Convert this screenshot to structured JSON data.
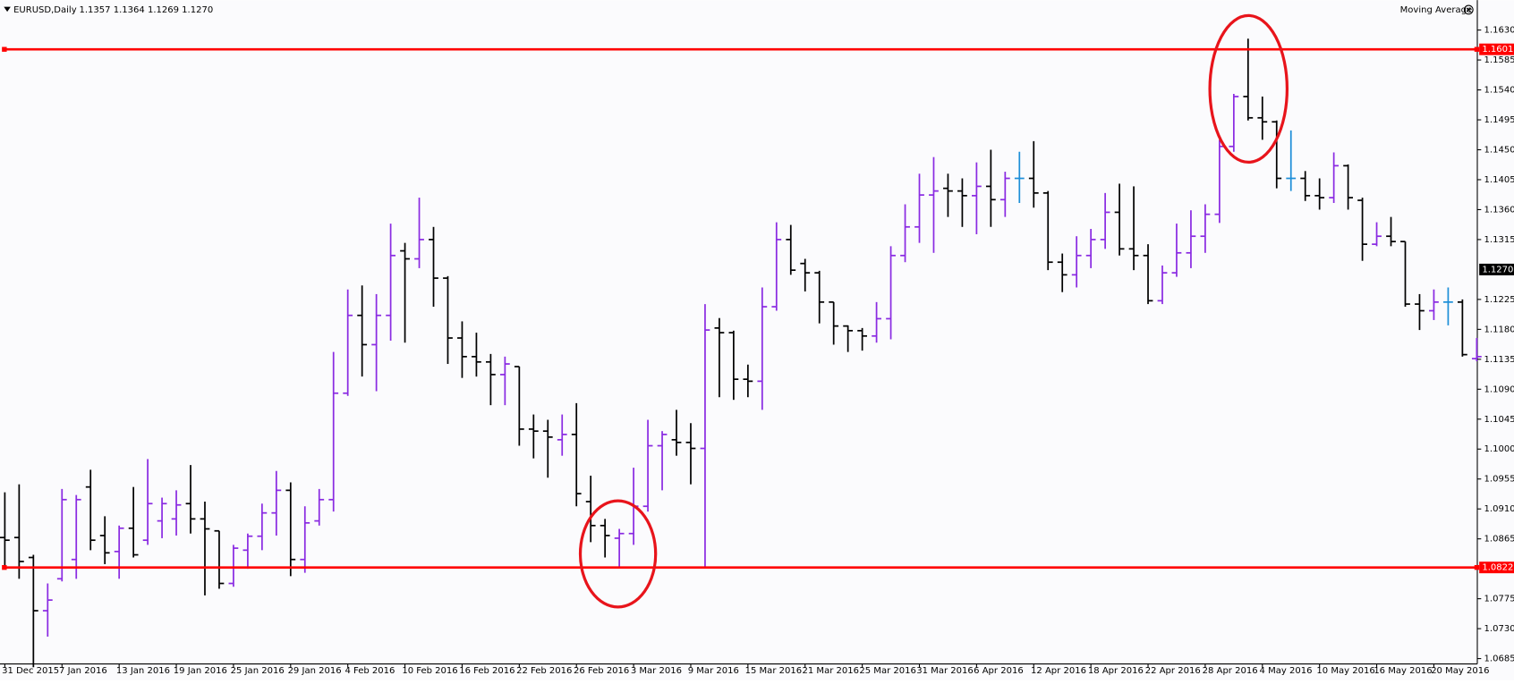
{
  "chart_data": {
    "type": "ohlc",
    "title": "EURUSD,Daily",
    "subtitle": "1.1357 1.1364 1.1269 1.1270",
    "indicator": "Moving Average",
    "categories": [
      "31 Dec 2015",
      null,
      null,
      null,
      "7 Jan 2016",
      null,
      null,
      null,
      "13 Jan 2016",
      null,
      null,
      null,
      "19 Jan 2016",
      null,
      null,
      null,
      "25 Jan 2016",
      null,
      null,
      null,
      "29 Jan 2016",
      null,
      null,
      null,
      "4 Feb 2016",
      null,
      null,
      null,
      "10 Feb 2016",
      null,
      null,
      null,
      "16 Feb 2016",
      null,
      null,
      null,
      "22 Feb 2016",
      null,
      null,
      null,
      "26 Feb 2016",
      null,
      null,
      null,
      "3 Mar 2016",
      null,
      null,
      null,
      "9 Mar 2016",
      null,
      null,
      null,
      "15 Mar 2016",
      null,
      null,
      null,
      "21 Mar 2016",
      null,
      null,
      null,
      "25 Mar 2016",
      null,
      null,
      null,
      "31 Mar 2016",
      null,
      null,
      null,
      "6 Apr 2016",
      null,
      null,
      null,
      "12 Apr 2016",
      null,
      null,
      null,
      "18 Apr 2016",
      null,
      null,
      null,
      "22 Apr 2016",
      null,
      null,
      null,
      "28 Apr 2016",
      null,
      null,
      null,
      "4 May 2016",
      null,
      null,
      null,
      "10 May 2016",
      null,
      null,
      null,
      "16 May 2016",
      null,
      null,
      null,
      "20 May 2016",
      null,
      null,
      null
    ],
    "open": [
      1.0867,
      1.0867,
      1.0837,
      1.0757,
      1.0805,
      1.0834,
      1.0943,
      1.087,
      1.0846,
      1.0881,
      1.0863,
      1.0892,
      1.0895,
      1.0918,
      1.0895,
      1.0877,
      1.0798,
      1.0848,
      1.0869,
      1.0904,
      1.0938,
      1.0834,
      1.0892,
      1.0924,
      1.1084,
      1.1201,
      1.1157,
      1.1201,
      1.1298,
      1.1286,
      1.1315,
      1.1257,
      1.1167,
      1.1139,
      1.1131,
      1.1112,
      1.1124,
      1.103,
      1.1027,
      1.1014,
      1.1022,
      1.0921,
      1.0885,
      1.0866,
      1.0873,
      1.0914,
      1.1005,
      1.1014,
      1.101,
      1.1001,
      1.1182,
      1.1175,
      1.1105,
      1.1102,
      1.1214,
      1.1315,
      1.1279,
      1.1265,
      1.1221,
      1.1185,
      1.1178,
      1.117,
      1.1196,
      1.1291,
      1.1334,
      1.1382,
      1.1392,
      1.1388,
      1.1381,
      1.1395,
      1.1375,
      1.1407,
      1.1407,
      1.1385,
      1.1281,
      1.1262,
      1.1291,
      1.1315,
      1.1356,
      1.1301,
      1.1291,
      1.1223,
      1.1265,
      1.1295,
      1.132,
      1.1353,
      1.1455,
      1.153,
      1.1498,
      1.1492,
      1.1407,
      1.1407,
      1.1381,
      1.1378,
      1.1426,
      1.1374,
      1.1308,
      1.132,
      1.1312,
      1.1218,
      1.1208,
      1.1221,
      1.1221,
      1.1136
    ],
    "high": [
      1.0935,
      1.0947,
      1.0841,
      1.0798,
      1.094,
      1.0931,
      1.0969,
      1.0899,
      1.0885,
      1.0943,
      1.0985,
      1.0927,
      1.0938,
      1.0976,
      1.0921,
      1.0877,
      1.0856,
      1.0873,
      1.0918,
      1.0967,
      1.095,
      1.0914,
      1.094,
      1.1146,
      1.124,
      1.1246,
      1.1233,
      1.1339,
      1.131,
      1.1378,
      1.1334,
      1.126,
      1.1192,
      1.1175,
      1.1143,
      1.1139,
      1.1124,
      1.1052,
      1.1044,
      1.1052,
      1.1069,
      1.096,
      1.0895,
      1.088,
      1.0972,
      1.1044,
      1.1027,
      1.1059,
      1.1039,
      1.1218,
      1.1197,
      1.1178,
      1.1127,
      1.1243,
      1.1341,
      1.1337,
      1.1286,
      1.1268,
      1.1221,
      1.1186,
      1.1182,
      1.1221,
      1.1305,
      1.1368,
      1.1414,
      1.1439,
      1.1414,
      1.1407,
      1.1431,
      1.145,
      1.1417,
      1.1447,
      1.1463,
      1.1388,
      1.1294,
      1.132,
      1.1331,
      1.1385,
      1.1399,
      1.1395,
      1.1308,
      1.1276,
      1.1339,
      1.1359,
      1.1368,
      1.1465,
      1.1534,
      1.1617,
      1.153,
      1.1494,
      1.1479,
      1.1418,
      1.1407,
      1.1446,
      1.1428,
      1.1378,
      1.1341,
      1.1349,
      1.1312,
      1.1233,
      1.124,
      1.1243,
      1.1225,
      1.1167
    ],
    "low": [
      1.082,
      1.0805,
      1.0672,
      1.0718,
      1.0801,
      1.0805,
      1.0848,
      1.0827,
      1.0805,
      1.0837,
      1.0856,
      1.0866,
      1.087,
      1.0873,
      1.078,
      1.079,
      1.0793,
      1.082,
      1.0848,
      1.087,
      1.0809,
      1.0814,
      1.0885,
      1.0906,
      1.108,
      1.1109,
      1.1087,
      1.1163,
      1.116,
      1.1272,
      1.1214,
      1.1128,
      1.1107,
      1.1109,
      1.1066,
      1.1066,
      1.1005,
      1.0986,
      1.0957,
      1.099,
      1.0914,
      1.086,
      1.0837,
      1.0822,
      1.0856,
      1.0906,
      1.0938,
      1.099,
      1.0947,
      1.0822,
      1.1078,
      1.1074,
      1.1078,
      1.1059,
      1.1208,
      1.1262,
      1.1237,
      1.1189,
      1.1157,
      1.1146,
      1.1148,
      1.116,
      1.1165,
      1.1281,
      1.131,
      1.1295,
      1.1349,
      1.1334,
      1.1323,
      1.1334,
      1.1349,
      1.137,
      1.1363,
      1.1269,
      1.1236,
      1.1243,
      1.1272,
      1.1301,
      1.1291,
      1.1269,
      1.1218,
      1.1218,
      1.1259,
      1.1272,
      1.1295,
      1.134,
      1.1447,
      1.1494,
      1.1465,
      1.1392,
      1.1388,
      1.1373,
      1.136,
      1.137,
      1.136,
      1.1283,
      1.1305,
      1.1305,
      1.1214,
      1.1179,
      1.1194,
      1.1186,
      1.1139,
      1.1132
    ],
    "close": [
      1.0863,
      1.0831,
      1.0757,
      1.0773,
      1.0924,
      1.0924,
      1.0863,
      1.0844,
      1.0881,
      1.0841,
      1.0918,
      1.0918,
      1.0916,
      1.0895,
      1.088,
      1.0798,
      1.0851,
      1.0869,
      1.0904,
      1.0938,
      1.0834,
      1.0889,
      1.0924,
      1.1084,
      1.1201,
      1.1157,
      1.1201,
      1.1291,
      1.1286,
      1.1315,
      1.1257,
      1.1167,
      1.1139,
      1.1131,
      1.1112,
      1.1128,
      1.103,
      1.1027,
      1.1018,
      1.1022,
      1.0933,
      1.0885,
      1.087,
      1.0873,
      1.0914,
      1.1005,
      1.1022,
      1.101,
      1.1001,
      1.1179,
      1.1175,
      1.1105,
      1.1102,
      1.1214,
      1.1315,
      1.1269,
      1.1265,
      1.1221,
      1.1185,
      1.1178,
      1.117,
      1.1196,
      1.1291,
      1.1334,
      1.1382,
      1.1388,
      1.1388,
      1.1381,
      1.1395,
      1.1375,
      1.1407,
      1.1407,
      1.1385,
      1.1281,
      1.1262,
      1.1291,
      1.1315,
      1.1356,
      1.1301,
      1.1291,
      1.1223,
      1.1265,
      1.1295,
      1.132,
      1.1353,
      1.1455,
      1.153,
      1.1498,
      1.1492,
      1.1407,
      1.1407,
      1.1381,
      1.1378,
      1.1426,
      1.1378,
      1.1308,
      1.132,
      1.1312,
      1.1218,
      1.1208,
      1.1221,
      1.1221,
      1.1142,
      1.1139
    ],
    "up_color": "#8a2be2",
    "down_color": "#000000",
    "unchanged_color": "#1e8fd8",
    "ylim": [
      1.0677,
      1.1675
    ],
    "yticks": [
      {
        "value": 1.163,
        "label": "1.1630"
      },
      1.1585,
      {
        "value": 1.154,
        "label": "1.1540"
      },
      1.1495,
      {
        "value": 1.145,
        "label": "1.1450"
      },
      1.1405,
      {
        "value": 1.136,
        "label": "1.1360"
      },
      1.1315,
      1.1225,
      {
        "value": 1.118,
        "label": "1.1180"
      },
      1.1135,
      {
        "value": 1.109,
        "label": "1.1090"
      },
      1.1045,
      {
        "value": 1.1,
        "label": "1.1000"
      },
      1.0955,
      {
        "value": 1.091,
        "label": "1.0910"
      },
      1.0865,
      1.0775,
      {
        "value": 1.073,
        "label": "1.0730"
      },
      1.0685
    ],
    "hlines": [
      1.1601,
      1.0822
    ],
    "hline_color": "#ff0000",
    "current_price": {
      "value": 1.127,
      "label": "1.1270"
    }
  }
}
